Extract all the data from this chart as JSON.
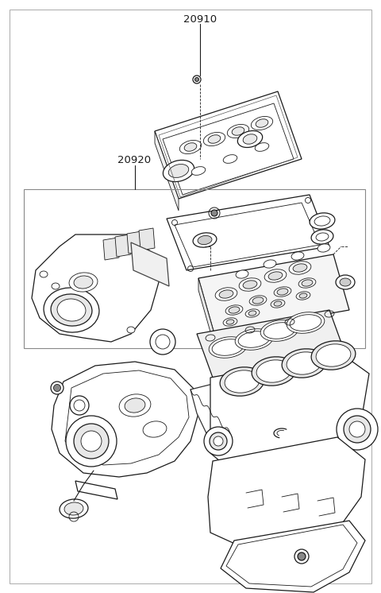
{
  "background_color": "#ffffff",
  "line_color": "#1a1a1a",
  "label_color": "#333333",
  "figsize": [
    4.8,
    7.46
  ],
  "dpi": 100,
  "label_20910": "20910",
  "label_20920": "20920"
}
